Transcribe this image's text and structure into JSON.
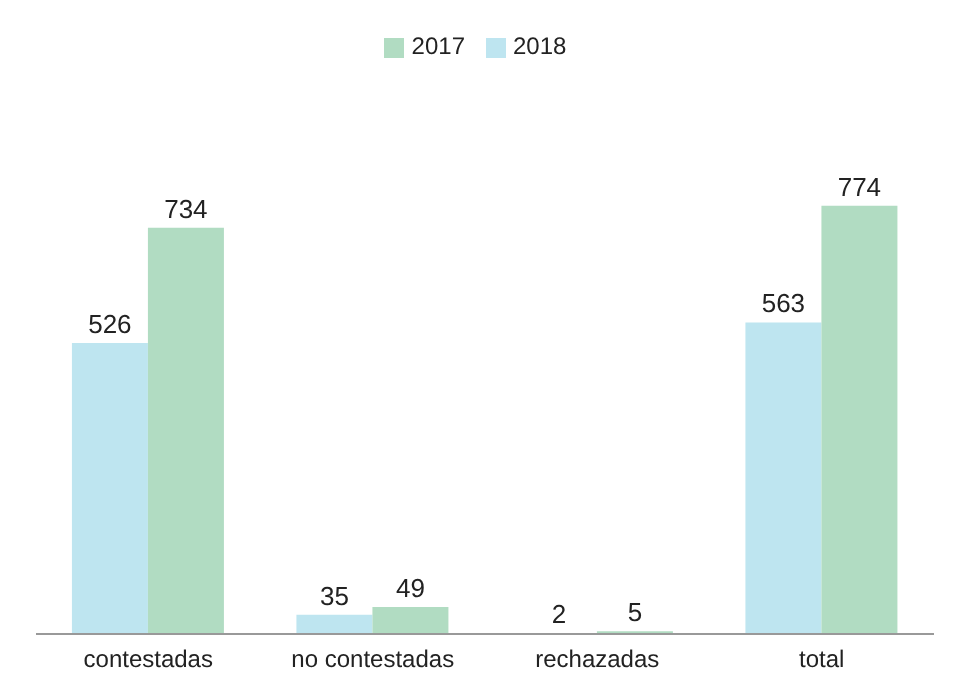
{
  "chart_data": {
    "type": "bar",
    "categories": [
      "contestadas",
      "no contestadas",
      "rechazadas",
      "total"
    ],
    "series": [
      {
        "name": "2018",
        "color": "#bee5f0",
        "values": [
          526,
          35,
          2,
          563
        ]
      },
      {
        "name": "2017",
        "color": "#b1dcc2",
        "values": [
          734,
          49,
          5,
          774
        ]
      }
    ],
    "data_labels": true,
    "legend": "top",
    "grid": false,
    "tick_labels": "x"
  }
}
